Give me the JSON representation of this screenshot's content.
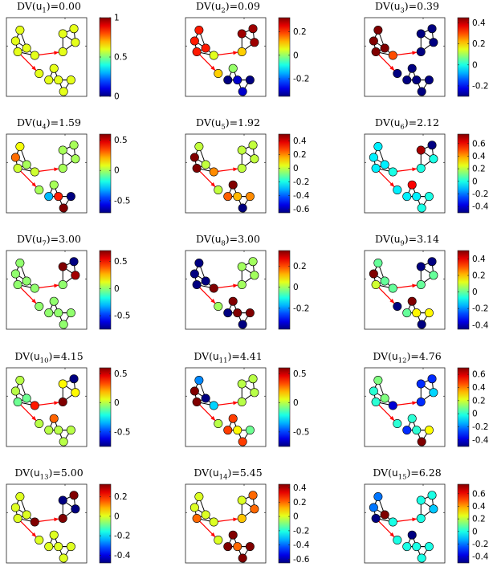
{
  "chart_data": [
    {
      "type": "network-colormap",
      "title": {
        "pre": "DV(",
        "var": "u",
        "sub": "1",
        "post": ")=0.00"
      },
      "cbar_ticks": [
        "1",
        "0.5",
        "0"
      ],
      "cbar_range": [
        0,
        1
      ],
      "node_values": [
        0.6,
        0.6,
        0.6,
        0.6,
        0.6,
        0.6,
        0.6,
        0.6,
        0.6,
        0.6,
        0.6,
        0.6,
        0.6,
        0.6,
        0.6
      ]
    },
    {
      "type": "network-colormap",
      "title": {
        "pre": "DV(",
        "var": "u",
        "sub": "2",
        "post": ")=0.09"
      },
      "cbar_ticks": [
        "0.2",
        "0",
        "-0.2"
      ],
      "cbar_range": [
        -0.35,
        0.32
      ],
      "node_values": [
        0.22,
        0.22,
        0.22,
        0.22,
        0.05,
        0.3,
        0.3,
        0.3,
        0.1,
        0.1,
        0.0,
        -0.35,
        -0.3,
        -0.35,
        -0.3
      ]
    },
    {
      "type": "network-colormap",
      "title": {
        "pre": "DV(",
        "var": "u",
        "sub": "3",
        "post": ")=0.39"
      },
      "cbar_ticks": [
        "0.4",
        "0.2",
        "0",
        "-0.2"
      ],
      "cbar_range": [
        -0.3,
        0.45
      ],
      "node_values": [
        0.45,
        0.45,
        0.45,
        0.45,
        0.3,
        -0.3,
        -0.3,
        -0.3,
        -0.3,
        -0.3,
        -0.3,
        -0.3,
        -0.3,
        -0.3,
        -0.3
      ]
    },
    {
      "type": "network-colormap",
      "title": {
        "pre": "DV(",
        "var": "u",
        "sub": "4",
        "post": ")=1.59"
      },
      "cbar_ticks": [
        "0.5",
        "0",
        "-0.5"
      ],
      "cbar_range": [
        -0.7,
        0.6
      ],
      "node_values": [
        0.1,
        0.3,
        0.05,
        0.0,
        0.05,
        0.0,
        0.0,
        0.0,
        0.0,
        0.0,
        0.0,
        -0.3,
        0.4,
        -0.7,
        0.65
      ]
    },
    {
      "type": "network-colormap",
      "title": {
        "pre": "DV(",
        "var": "u",
        "sub": "5",
        "post": ")=1.92"
      },
      "cbar_ticks": [
        "0.4",
        "0.2",
        "0",
        "-0.2",
        "-0.4",
        "-0.6"
      ],
      "cbar_range": [
        -0.65,
        0.5
      ],
      "node_values": [
        0.0,
        0.5,
        0.5,
        0.0,
        0.2,
        0.0,
        0.0,
        0.0,
        0.0,
        0.0,
        0.5,
        0.25,
        0.15,
        0.2,
        -0.65
      ]
    },
    {
      "type": "network-colormap",
      "title": {
        "pre": "DV(",
        "var": "u",
        "sub": "6",
        "post": ")=2.12"
      },
      "cbar_ticks": [
        "0.6",
        "0.4",
        "0.2",
        "0",
        "-0.2",
        "-0.4"
      ],
      "cbar_range": [
        -0.5,
        0.75
      ],
      "node_values": [
        -0.05,
        -0.05,
        -0.05,
        -0.05,
        0.0,
        -0.5,
        0.7,
        0.0,
        0.0,
        -0.05,
        0.6,
        -0.05,
        -0.05,
        0.0,
        0.0
      ]
    },
    {
      "type": "network-colormap",
      "title": {
        "pre": "DV(",
        "var": "u",
        "sub": "7",
        "post": ")=3.00"
      },
      "cbar_ticks": [
        "0.5",
        "0",
        "-0.5"
      ],
      "cbar_range": [
        -0.75,
        0.7
      ],
      "node_values": [
        0.0,
        0.0,
        0.0,
        0.0,
        0.0,
        -0.75,
        0.7,
        0.65,
        0.0,
        0.0,
        0.0,
        0.0,
        0.0,
        0.0,
        0.0
      ]
    },
    {
      "type": "network-colormap",
      "title": {
        "pre": "DV(",
        "var": "u",
        "sub": "8",
        "post": ")=3.00"
      },
      "cbar_ticks": [
        "0.2",
        "0",
        "-0.2"
      ],
      "cbar_range": [
        -0.4,
        0.35
      ],
      "node_values": [
        -0.4,
        -0.4,
        -0.4,
        -0.4,
        0.35,
        0.0,
        0.0,
        0.0,
        0.0,
        0.0,
        0.35,
        -0.4,
        0.35,
        0.35,
        -0.4
      ]
    },
    {
      "type": "network-colormap",
      "title": {
        "pre": "DV(",
        "var": "u",
        "sub": "9",
        "post": ")=3.14"
      },
      "cbar_ticks": [
        "0.4",
        "0.2",
        "0",
        "-0.2",
        "-0.4"
      ],
      "cbar_range": [
        -0.45,
        0.5
      ],
      "node_values": [
        0.0,
        0.5,
        0.1,
        0.0,
        0.0,
        -0.45,
        -0.45,
        0.0,
        0.0,
        -0.45,
        0.5,
        0.0,
        0.15,
        0.15,
        -0.45
      ]
    },
    {
      "type": "network-colormap",
      "title": {
        "pre": "DV(",
        "var": "u",
        "sub": "10",
        "post": ")=4.15"
      },
      "cbar_ticks": [
        "0.5",
        "0",
        "-0.5"
      ],
      "cbar_range": [
        -0.75,
        0.6
      ],
      "node_values": [
        0.0,
        0.0,
        -0.1,
        -0.1,
        0.4,
        -0.75,
        0.1,
        0.1,
        0.7,
        0.0,
        0.3,
        0.0,
        0.0,
        0.0,
        0.0
      ]
    },
    {
      "type": "network-colormap",
      "title": {
        "pre": "DV(",
        "var": "u",
        "sub": "11",
        "post": ")=4.41"
      },
      "cbar_ticks": [
        "0.5",
        "0",
        "-0.5"
      ],
      "cbar_range": [
        -0.75,
        0.6
      ],
      "node_values": [
        -0.4,
        0.7,
        0.7,
        -0.75,
        -0.3,
        0.0,
        0.0,
        0.0,
        0.0,
        0.0,
        0.35,
        0.35,
        0.1,
        -0.1,
        0.35
      ]
    },
    {
      "type": "network-colormap",
      "title": {
        "pre": "DV(",
        "var": "u",
        "sub": "12",
        "post": ")=4.76"
      },
      "cbar_ticks": [
        "0.6",
        "0.4",
        "0.2",
        "0",
        "-0.2",
        "-0.4"
      ],
      "cbar_range": [
        -0.5,
        0.7
      ],
      "node_values": [
        0.1,
        0.0,
        0.0,
        0.1,
        -0.4,
        -0.3,
        -0.3,
        -0.1,
        -0.3,
        0.0,
        0.0,
        -0.3,
        0.0,
        0.25,
        0.7
      ]
    },
    {
      "type": "network-colormap",
      "title": {
        "pre": "DV(",
        "var": "u",
        "sub": "13",
        "post": ")=5.00"
      },
      "cbar_ticks": [
        "0.2",
        "0",
        "-0.2",
        "-0.4"
      ],
      "cbar_range": [
        -0.48,
        0.33
      ],
      "node_values": [
        0.0,
        0.0,
        0.0,
        0.0,
        0.33,
        0.33,
        -0.48,
        -0.48,
        0.33,
        0.0,
        0.0,
        0.0,
        0.0,
        0.0,
        0.0
      ]
    },
    {
      "type": "network-colormap",
      "title": {
        "pre": "DV(",
        "var": "u",
        "sub": "14",
        "post": ")=5.45"
      },
      "cbar_ticks": [
        "0.4",
        "0.2",
        "0",
        "-0.2",
        "-0.4",
        "-0.6"
      ],
      "cbar_range": [
        -0.65,
        0.45
      ],
      "node_values": [
        0.0,
        0.0,
        0.2,
        0.0,
        0.0,
        0.2,
        0.0,
        0.2,
        0.1,
        0.0,
        0.45,
        0.45,
        0.2,
        0.45,
        0.45
      ]
    },
    {
      "type": "network-colormap",
      "title": {
        "pre": "DV(",
        "var": "u",
        "sub": "15",
        "post": ")=6.28"
      },
      "cbar_ticks": [
        "0.6",
        "0.4",
        "0.2",
        "0",
        "-0.2",
        "-0.4"
      ],
      "cbar_range": [
        -0.5,
        0.75
      ],
      "node_values": [
        -0.2,
        -0.2,
        -0.5,
        0.75,
        0.0,
        0.0,
        0.0,
        -0.1,
        0.0,
        0.0,
        -0.5,
        0.0,
        0.0,
        0.0,
        0.0
      ]
    }
  ]
}
